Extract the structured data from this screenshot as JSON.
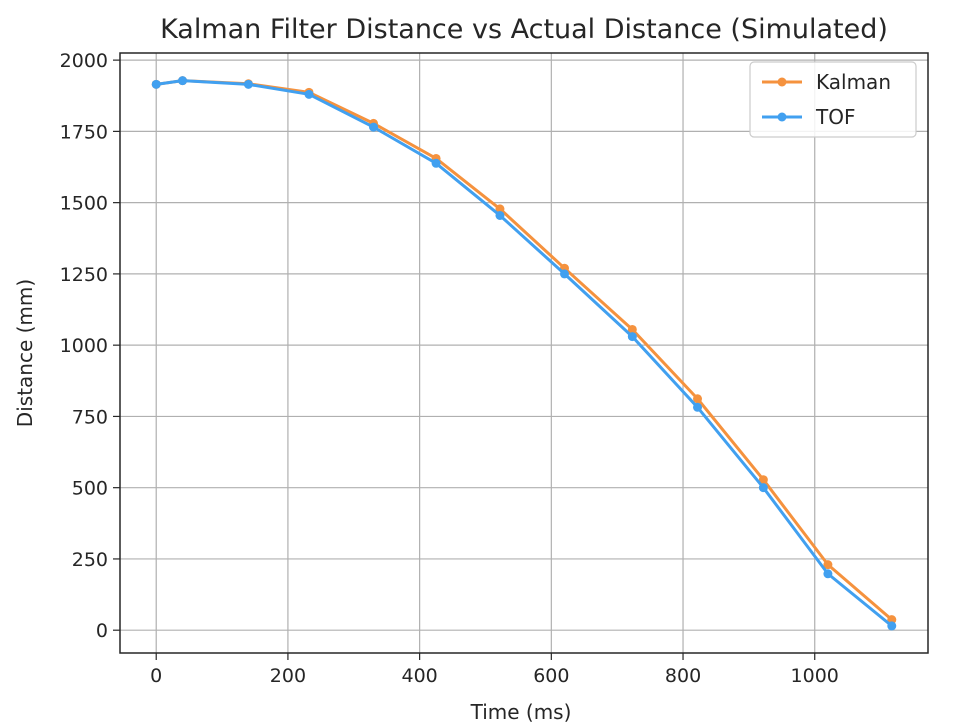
{
  "chart_data": {
    "type": "line",
    "title": "Kalman Filter Distance vs Actual Distance (Simulated)",
    "xlabel": "Time (ms)",
    "ylabel": "Distance (mm)",
    "xlim": [
      -55,
      1172
    ],
    "ylim": [
      -80,
      2025
    ],
    "xticks": [
      0,
      200,
      400,
      600,
      800,
      1000
    ],
    "yticks": [
      0,
      250,
      500,
      750,
      1000,
      1250,
      1500,
      1750,
      2000
    ],
    "grid": true,
    "legend_position": "top-right",
    "series": [
      {
        "name": "Kalman",
        "color": "#f5923e",
        "x": [
          0,
          40,
          140,
          232,
          330,
          425,
          522,
          620,
          723,
          822,
          922,
          1020,
          1117
        ],
        "y": [
          1915,
          1928,
          1917,
          1887,
          1778,
          1655,
          1478,
          1270,
          1055,
          812,
          528,
          230,
          37
        ]
      },
      {
        "name": "TOF",
        "color": "#41a0f0",
        "x": [
          0,
          40,
          140,
          232,
          330,
          425,
          522,
          620,
          723,
          822,
          922,
          1020,
          1117
        ],
        "y": [
          1915,
          1928,
          1915,
          1880,
          1765,
          1638,
          1455,
          1250,
          1030,
          782,
          500,
          198,
          15
        ]
      }
    ]
  }
}
